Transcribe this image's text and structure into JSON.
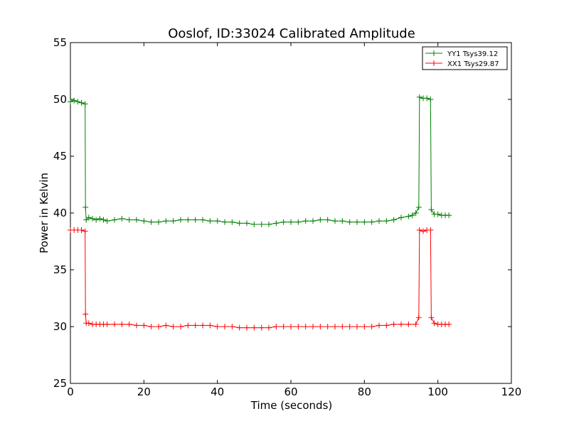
{
  "chart_data": {
    "type": "line",
    "title": "Ooslof, ID:33024 Calibrated Amplitude",
    "xlabel": "Time (seconds)",
    "ylabel": "Power in Kelvin",
    "xlim": [
      0,
      120
    ],
    "ylim": [
      25,
      55
    ],
    "xticks": [
      0,
      20,
      40,
      60,
      80,
      100,
      120
    ],
    "yticks": [
      25,
      30,
      35,
      40,
      45,
      50,
      55
    ],
    "grid": false,
    "legend_position": "top-right",
    "series": [
      {
        "name": "YY1 Tsys39.12",
        "color": "#008000",
        "points": [
          [
            0,
            49.8
          ],
          [
            1,
            49.9
          ],
          [
            2,
            49.8
          ],
          [
            3,
            49.7
          ],
          [
            4,
            49.6
          ],
          [
            4.1,
            40.5
          ],
          [
            4.3,
            39.4
          ],
          [
            5,
            39.6
          ],
          [
            6,
            39.5
          ],
          [
            7,
            39.4
          ],
          [
            8,
            39.5
          ],
          [
            9,
            39.4
          ],
          [
            10,
            39.3
          ],
          [
            12,
            39.4
          ],
          [
            14,
            39.5
          ],
          [
            16,
            39.4
          ],
          [
            18,
            39.4
          ],
          [
            20,
            39.3
          ],
          [
            22,
            39.2
          ],
          [
            24,
            39.2
          ],
          [
            26,
            39.3
          ],
          [
            28,
            39.3
          ],
          [
            30,
            39.4
          ],
          [
            32,
            39.4
          ],
          [
            34,
            39.4
          ],
          [
            36,
            39.4
          ],
          [
            38,
            39.3
          ],
          [
            40,
            39.3
          ],
          [
            42,
            39.2
          ],
          [
            44,
            39.2
          ],
          [
            46,
            39.1
          ],
          [
            48,
            39.1
          ],
          [
            50,
            39.0
          ],
          [
            52,
            39.0
          ],
          [
            54,
            39.0
          ],
          [
            56,
            39.1
          ],
          [
            58,
            39.2
          ],
          [
            60,
            39.2
          ],
          [
            62,
            39.2
          ],
          [
            64,
            39.3
          ],
          [
            66,
            39.3
          ],
          [
            68,
            39.4
          ],
          [
            70,
            39.4
          ],
          [
            72,
            39.3
          ],
          [
            74,
            39.3
          ],
          [
            76,
            39.2
          ],
          [
            78,
            39.2
          ],
          [
            80,
            39.2
          ],
          [
            82,
            39.2
          ],
          [
            84,
            39.3
          ],
          [
            86,
            39.3
          ],
          [
            88,
            39.4
          ],
          [
            90,
            39.6
          ],
          [
            92,
            39.7
          ],
          [
            93,
            39.8
          ],
          [
            94,
            40.0
          ],
          [
            94.8,
            40.5
          ],
          [
            95,
            50.2
          ],
          [
            96,
            50.1
          ],
          [
            97,
            50.1
          ],
          [
            98,
            50.0
          ],
          [
            98.2,
            40.3
          ],
          [
            99,
            39.9
          ],
          [
            100,
            39.9
          ],
          [
            101,
            39.8
          ],
          [
            102,
            39.8
          ],
          [
            103,
            39.8
          ]
        ]
      },
      {
        "name": "XX1 Tsys29.87",
        "color": "#ff0000",
        "points": [
          [
            0,
            38.5
          ],
          [
            1,
            38.5
          ],
          [
            2,
            38.5
          ],
          [
            3,
            38.5
          ],
          [
            4,
            38.4
          ],
          [
            4.1,
            31.1
          ],
          [
            4.3,
            30.3
          ],
          [
            5,
            30.3
          ],
          [
            6,
            30.2
          ],
          [
            7,
            30.2
          ],
          [
            8,
            30.2
          ],
          [
            9,
            30.2
          ],
          [
            10,
            30.2
          ],
          [
            12,
            30.2
          ],
          [
            14,
            30.2
          ],
          [
            16,
            30.2
          ],
          [
            18,
            30.1
          ],
          [
            20,
            30.1
          ],
          [
            22,
            30.0
          ],
          [
            24,
            30.0
          ],
          [
            26,
            30.1
          ],
          [
            28,
            30.0
          ],
          [
            30,
            30.0
          ],
          [
            32,
            30.1
          ],
          [
            34,
            30.1
          ],
          [
            36,
            30.1
          ],
          [
            38,
            30.1
          ],
          [
            40,
            30.0
          ],
          [
            42,
            30.0
          ],
          [
            44,
            30.0
          ],
          [
            46,
            29.9
          ],
          [
            48,
            29.9
          ],
          [
            50,
            29.9
          ],
          [
            52,
            29.9
          ],
          [
            54,
            29.9
          ],
          [
            56,
            30.0
          ],
          [
            58,
            30.0
          ],
          [
            60,
            30.0
          ],
          [
            62,
            30.0
          ],
          [
            64,
            30.0
          ],
          [
            66,
            30.0
          ],
          [
            68,
            30.0
          ],
          [
            70,
            30.0
          ],
          [
            72,
            30.0
          ],
          [
            74,
            30.0
          ],
          [
            76,
            30.0
          ],
          [
            78,
            30.0
          ],
          [
            80,
            30.0
          ],
          [
            82,
            30.0
          ],
          [
            84,
            30.1
          ],
          [
            86,
            30.1
          ],
          [
            88,
            30.2
          ],
          [
            90,
            30.2
          ],
          [
            92,
            30.2
          ],
          [
            94,
            30.2
          ],
          [
            94.8,
            30.8
          ],
          [
            95,
            38.5
          ],
          [
            96,
            38.4
          ],
          [
            97,
            38.5
          ],
          [
            98,
            38.5
          ],
          [
            98.2,
            30.8
          ],
          [
            99,
            30.3
          ],
          [
            100,
            30.2
          ],
          [
            101,
            30.2
          ],
          [
            102,
            30.2
          ],
          [
            103,
            30.2
          ]
        ]
      }
    ]
  }
}
